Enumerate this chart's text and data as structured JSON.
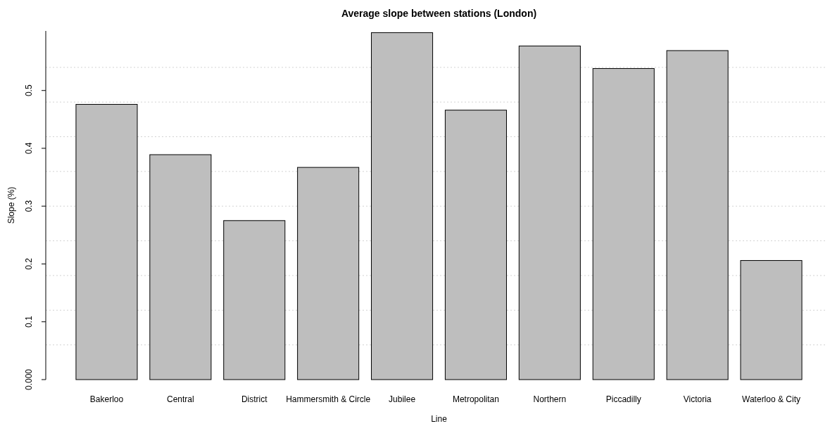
{
  "chart_data": {
    "type": "bar",
    "title": "Average slope between stations (London)",
    "xlabel": "Line",
    "ylabel": "Slope (%)",
    "categories": [
      "Bakerloo",
      "Central",
      "District",
      "Hammersmith & Circle",
      "Jubilee",
      "Metropolitan",
      "Northern",
      "Piccadilly",
      "Victoria",
      "Waterloo & City"
    ],
    "values": [
      0.476,
      0.389,
      0.275,
      0.367,
      0.6,
      0.466,
      0.577,
      0.538,
      0.569,
      0.206
    ],
    "color": "#bebebe",
    "ylim": [
      0,
      0.603
    ],
    "yticks": [
      {
        "value": 0,
        "label": "0.000"
      },
      0.1,
      0.2,
      0.3,
      0.4,
      0.5,
      {
        "value": 0.06,
        "label": null
      },
      {
        "value": 0.12,
        "label": null
      },
      {
        "value": 0.18,
        "label": null
      },
      {
        "value": 0.24,
        "label": null
      },
      {
        "value": 0.3,
        "label": null
      },
      {
        "value": 0.36,
        "label": null
      },
      {
        "value": 0.42,
        "label": null
      },
      {
        "value": 0.48,
        "label": null
      },
      {
        "value": 0.54,
        "label": null
      }
    ],
    "grid": "y"
  }
}
